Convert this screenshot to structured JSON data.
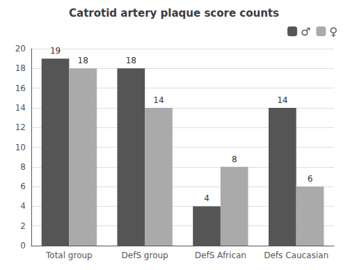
{
  "chart_data": {
    "type": "bar",
    "title": "Catrotid artery plaque score counts",
    "categories": [
      "Total group",
      "DefS group",
      "DefS African",
      "Defs Caucasian"
    ],
    "series": [
      {
        "name": "♂",
        "color": "#555555",
        "values": [
          19,
          18,
          4,
          14
        ]
      },
      {
        "name": "♀",
        "color": "#aaaaaa",
        "values": [
          18,
          14,
          8,
          6
        ]
      }
    ],
    "ylim": [
      0,
      20
    ],
    "yticks": [
      0,
      2,
      4,
      6,
      8,
      10,
      12,
      14,
      16,
      18,
      20
    ],
    "grid": true,
    "legend": "upper right",
    "data_labels": true
  }
}
